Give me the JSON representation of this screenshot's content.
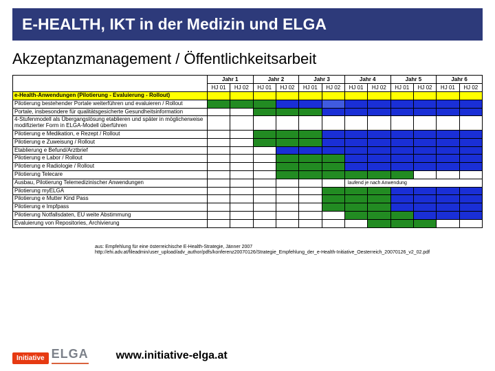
{
  "title": "E-HEALTH, IKT in der Medizin  und  ELGA",
  "subtitle": "Akzeptanzmanagement / Öffentlichkeitsarbeit",
  "years": [
    "Jahr 1",
    "Jahr 2",
    "Jahr 3",
    "Jahr 4",
    "Jahr 5",
    "Jahr 6"
  ],
  "half_year_labels": [
    "HJ 01",
    "HJ 02",
    "HJ 01",
    "HJ 02",
    "HJ 01",
    "HJ 02",
    "HJ 01",
    "HJ 02",
    "HJ 01",
    "HJ 02",
    "HJ 01",
    "HJ 02"
  ],
  "colors": {
    "green": "#228b22",
    "blue": "#1a2fd6",
    "blue_l": "#405be0",
    "yellow": "#ffff00",
    "white": "#ffffff",
    "border": "#000000"
  },
  "section_label": "e-Health-Anwendungen\n(Pilotierung - Evaluierung - Rollout)",
  "runtime_note": "laufend je nach Anwendung",
  "rows": [
    {
      "label": "Pilotierung bestehender Portale weiterführen und evaluieren / Rollout",
      "cells": [
        "g",
        "g",
        "g",
        "b",
        "b",
        "b-l",
        "b",
        "b",
        "b",
        "b",
        "b",
        "b"
      ]
    },
    {
      "label": "Portale, insbesondere für qualitätsgesicherte Gesundheitsinformation",
      "cells": [
        "w",
        "w",
        "g",
        "g",
        "g",
        "b",
        "b",
        "b",
        "b",
        "b",
        "b",
        "b"
      ]
    },
    {
      "label": "4-Stufenmodell als Übergangslösung etablieren und später in möglicherweise modifizierter Form in ELGA-Modell überführen",
      "cells": [
        "w",
        "w",
        "w",
        "w",
        "w",
        "w",
        "w",
        "w",
        "w",
        "w",
        "w",
        "w"
      ]
    },
    {
      "label": "Pilotierung e Medikation, e Rezept / Rollout",
      "cells": [
        "w",
        "w",
        "g",
        "g",
        "g",
        "b",
        "b",
        "b",
        "b",
        "b",
        "b",
        "b"
      ]
    },
    {
      "label": "Pilotierung e Zuweisung / Rollout",
      "cells": [
        "w",
        "w",
        "g",
        "g",
        "g",
        "b",
        "b",
        "b",
        "b",
        "b",
        "b",
        "b"
      ]
    },
    {
      "label": "Etablierung e Befund/Arztbrief",
      "cells": [
        "w",
        "w",
        "w",
        "b",
        "b",
        "b",
        "b",
        "b",
        "b",
        "b",
        "b",
        "b"
      ]
    },
    {
      "label": "Pilotierung e Labor / Rollout",
      "cells": [
        "w",
        "w",
        "w",
        "g",
        "g",
        "g",
        "b",
        "b",
        "b",
        "b",
        "b",
        "b"
      ]
    },
    {
      "label": "Pilotierung e Radiologie / Rollout",
      "cells": [
        "w",
        "w",
        "w",
        "g",
        "g",
        "g",
        "b",
        "b",
        "b",
        "b",
        "b",
        "b"
      ]
    },
    {
      "label": "Pilotierung Telecare",
      "cells": [
        "w",
        "w",
        "w",
        "g",
        "g",
        "g",
        "g",
        "g",
        "g",
        "w",
        "w",
        "w"
      ]
    },
    {
      "label": "Ausbau, Pilotierung Telemedizinischer Anwendungen",
      "cells": [
        "w",
        "w",
        "w",
        "w",
        "w",
        "w",
        "note",
        "",
        "",
        "",
        "",
        ""
      ]
    },
    {
      "label": "Pilotierung myELGA",
      "cells": [
        "w",
        "w",
        "w",
        "w",
        "w",
        "g",
        "g",
        "g",
        "b",
        "b",
        "b",
        "b"
      ]
    },
    {
      "label": "Pilotierung e Mutter Kind Pass",
      "cells": [
        "w",
        "w",
        "w",
        "w",
        "w",
        "g",
        "g",
        "g",
        "b",
        "b",
        "b",
        "b"
      ]
    },
    {
      "label": "Pilotierung e Impfpass",
      "cells": [
        "w",
        "w",
        "w",
        "w",
        "w",
        "g",
        "g",
        "g",
        "b",
        "b",
        "b",
        "b"
      ]
    },
    {
      "label": "Pilotierung Notfallsdaten, EU weite Abstimmung",
      "cells": [
        "w",
        "w",
        "w",
        "w",
        "w",
        "w",
        "g",
        "g",
        "g",
        "b",
        "b",
        "b"
      ]
    },
    {
      "label": "Evaluierung von Repositories, Archivierung",
      "cells": [
        "w",
        "w",
        "w",
        "w",
        "w",
        "w",
        "w",
        "g",
        "g",
        "g",
        "w",
        "w"
      ]
    }
  ],
  "source_lines": [
    "aus: Empfehlung für eine österreichische E-Health-Strategie, Jänner 2007",
    "http://ehi.adv.at/fileadmin/user_upload/adv_author/pdfs/konferenz20070126/Strategie_Empfehlung_der_e-Health-Initiative_Oesterreich_20070126_v2_02.pdf"
  ],
  "logo": {
    "tag": "Initiative",
    "brand": "ELGA"
  },
  "url": "www.initiative-elga.at"
}
